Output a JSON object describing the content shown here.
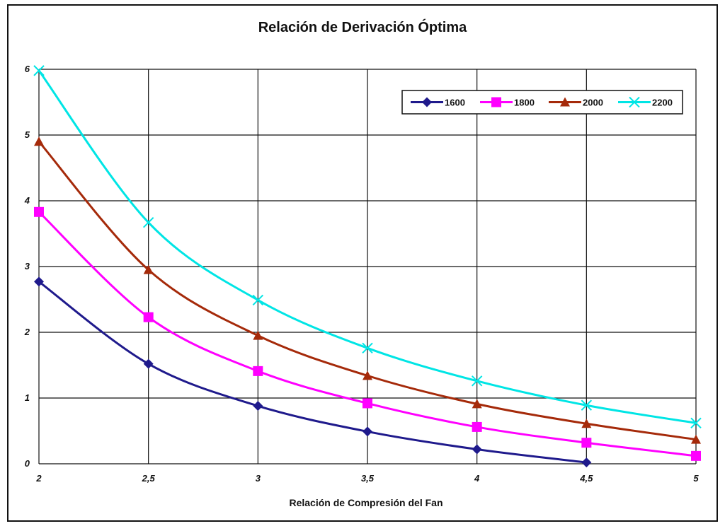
{
  "chart_data": {
    "type": "line",
    "title": "Relación de Derivación Óptima",
    "xlabel": "Relación de Compresión del Fan",
    "ylabel": "",
    "x": [
      2,
      2.5,
      3,
      3.5,
      4,
      4.5,
      5
    ],
    "x_tick_labels": [
      "2",
      "2,5",
      "3",
      "3,5",
      "4",
      "4,5",
      "5"
    ],
    "y_ticks": [
      0,
      1,
      2,
      3,
      4,
      5,
      6
    ],
    "xlim": [
      2,
      5
    ],
    "ylim": [
      0,
      6
    ],
    "grid": true,
    "legend_position": "top-right",
    "series": [
      {
        "name": "1600",
        "color": "#1f1a8c",
        "marker": "diamond",
        "values": [
          2.77,
          1.52,
          0.88,
          0.49,
          0.22,
          0.02,
          null
        ]
      },
      {
        "name": "1800",
        "color": "#ff00ff",
        "marker": "square",
        "values": [
          3.83,
          2.23,
          1.41,
          0.92,
          0.56,
          0.32,
          0.12
        ]
      },
      {
        "name": "2000",
        "color": "#a52a0a",
        "marker": "triangle",
        "values": [
          4.9,
          2.95,
          1.95,
          1.34,
          0.91,
          0.61,
          0.37
        ]
      },
      {
        "name": "2200",
        "color": "#00e5e5",
        "marker": "x",
        "values": [
          5.98,
          3.67,
          2.49,
          1.76,
          1.26,
          0.89,
          0.62
        ]
      }
    ]
  }
}
